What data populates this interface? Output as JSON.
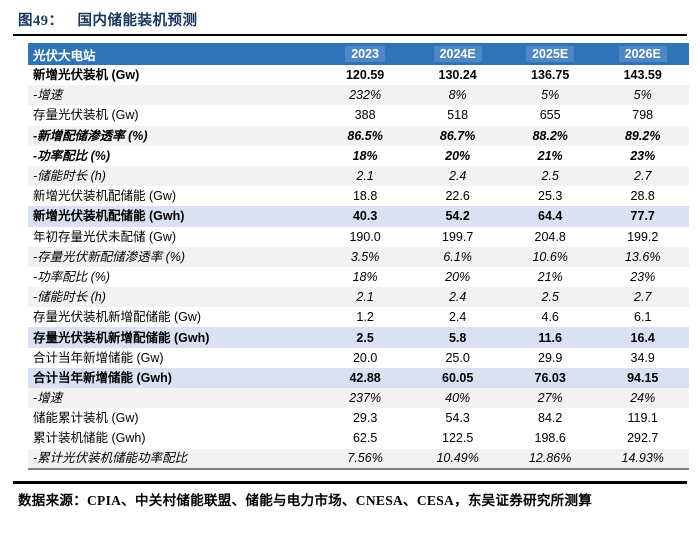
{
  "figure": {
    "label": "图49：",
    "title": "国内储能装机预测"
  },
  "table": {
    "corner_label": "光伏大电站",
    "columns": [
      "2023",
      "2024E",
      "2025E",
      "2026E"
    ],
    "rows": [
      {
        "label": "新增光伏装机 (Gw)",
        "values": [
          "120.59",
          "130.24",
          "136.75",
          "143.59"
        ],
        "style": "bold",
        "bg": "white"
      },
      {
        "label": "-增速",
        "values": [
          "232%",
          "8%",
          "5%",
          "5%"
        ],
        "style": "italic",
        "bg": "gray"
      },
      {
        "label": "存量光伏装机 (Gw)",
        "values": [
          "388",
          "518",
          "655",
          "798"
        ],
        "style": "regular",
        "bg": "white"
      },
      {
        "label": "-新增配储渗透率 (%)",
        "values": [
          "86.5%",
          "86.7%",
          "88.2%",
          "89.2%"
        ],
        "style": "bold-italic",
        "bg": "gray"
      },
      {
        "label": "-功率配比 (%)",
        "values": [
          "18%",
          "20%",
          "21%",
          "23%"
        ],
        "style": "bold-italic",
        "bg": "white"
      },
      {
        "label": "-储能时长 (h)",
        "values": [
          "2.1",
          "2.4",
          "2.5",
          "2.7"
        ],
        "style": "italic",
        "bg": "gray"
      },
      {
        "label": "新增光伏装机配储能 (Gw)",
        "values": [
          "18.8",
          "22.6",
          "25.3",
          "28.8"
        ],
        "style": "regular",
        "bg": "white"
      },
      {
        "label": "新增光伏装机配储能 (Gwh)",
        "values": [
          "40.3",
          "54.2",
          "64.4",
          "77.7"
        ],
        "style": "bold",
        "bg": "blue"
      },
      {
        "label": "年初存量光伏未配储 (Gw)",
        "values": [
          "190.0",
          "199.7",
          "204.8",
          "199.2"
        ],
        "style": "regular",
        "bg": "white"
      },
      {
        "label": "-存量光伏新配储渗透率 (%)",
        "values": [
          "3.5%",
          "6.1%",
          "10.6%",
          "13.6%"
        ],
        "style": "italic",
        "bg": "gray"
      },
      {
        "label": "-功率配比 (%)",
        "values": [
          "18%",
          "20%",
          "21%",
          "23%"
        ],
        "style": "italic",
        "bg": "white"
      },
      {
        "label": "-储能时长 (h)",
        "values": [
          "2.1",
          "2.4",
          "2.5",
          "2.7"
        ],
        "style": "italic",
        "bg": "gray"
      },
      {
        "label": "存量光伏装机新增配储能 (Gw)",
        "values": [
          "1.2",
          "2.4",
          "4.6",
          "6.1"
        ],
        "style": "regular",
        "bg": "white"
      },
      {
        "label": "存量光伏装机新增配储能 (Gwh)",
        "values": [
          "2.5",
          "5.8",
          "11.6",
          "16.4"
        ],
        "style": "bold",
        "bg": "blue"
      },
      {
        "label": "合计当年新增储能 (Gw)",
        "values": [
          "20.0",
          "25.0",
          "29.9",
          "34.9"
        ],
        "style": "regular",
        "bg": "white"
      },
      {
        "label": "合计当年新增储能 (Gwh)",
        "values": [
          "42.88",
          "60.05",
          "76.03",
          "94.15"
        ],
        "style": "bold",
        "bg": "blue"
      },
      {
        "label": "-增速",
        "values": [
          "237%",
          "40%",
          "27%",
          "24%"
        ],
        "style": "italic",
        "bg": "gray"
      },
      {
        "label": "储能累计装机 (Gw)",
        "values": [
          "29.3",
          "54.3",
          "84.2",
          "119.1"
        ],
        "style": "regular",
        "bg": "white"
      },
      {
        "label": "累计装机储能 (Gwh)",
        "values": [
          "62.5",
          "122.5",
          "198.6",
          "292.7"
        ],
        "style": "regular",
        "bg": "white"
      },
      {
        "label": "-累计光伏装机储能功率配比",
        "values": [
          "7.56%",
          "10.49%",
          "12.86%",
          "14.93%"
        ],
        "style": "italic",
        "bg": "gray"
      }
    ]
  },
  "footer": {
    "source": "数据来源：CPIA、中关村储能联盟、储能与电力市场、CNESA、CESA，东吴证券研究所测算"
  },
  "colors": {
    "title_navy": "#17375E",
    "header_bg": "#2E74B6",
    "header_chip": "#4D87C6",
    "row_highlight_blue": "#D9E1F2",
    "row_stripe_gray": "#F2F2F2"
  }
}
